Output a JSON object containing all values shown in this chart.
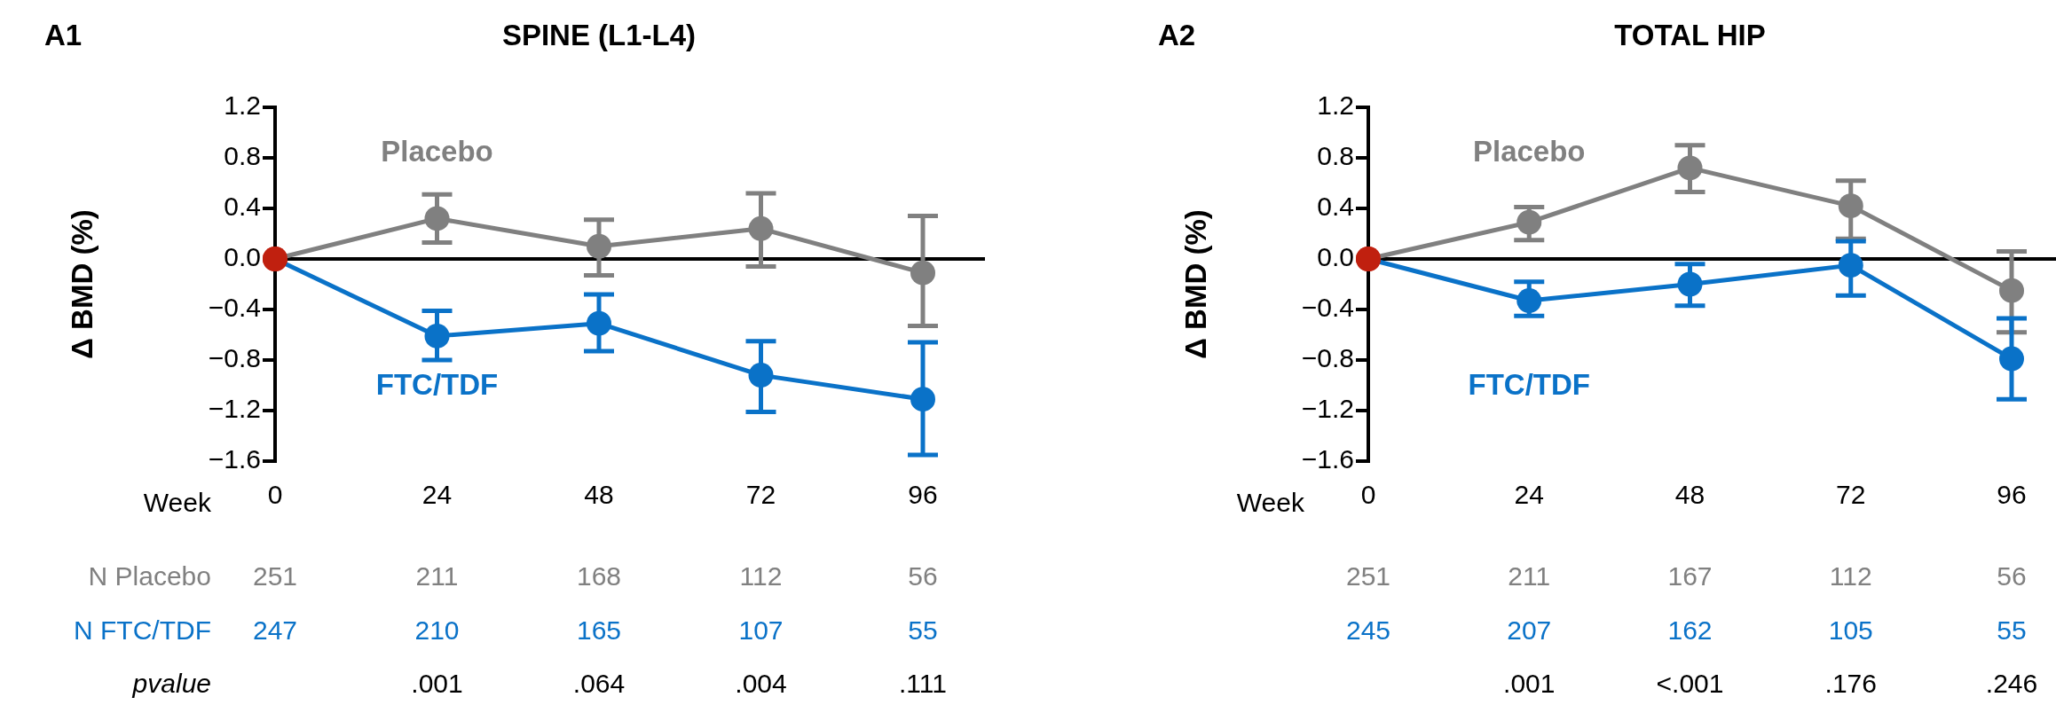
{
  "chart_data": [
    {
      "type": "line",
      "subtitle": "A1",
      "title": "SPINE (L1-L4)",
      "xlabel": "Week",
      "ylabel": "Δ BMD (%)",
      "categories": [
        "0",
        "24",
        "48",
        "72",
        "96"
      ],
      "series": [
        {
          "name": "Placebo",
          "color": "#808080",
          "colors": [
            "#c0200f",
            "#808080",
            "#808080",
            "#808080",
            "#808080"
          ],
          "values": [
            0,
            0.32,
            0.1,
            0.24,
            -0.11
          ],
          "errors": [
            null,
            [
              0.13,
              0.51
            ],
            [
              -0.13,
              0.31
            ],
            [
              -0.06,
              0.52
            ],
            [
              -0.53,
              0.34
            ]
          ]
        },
        {
          "name": "FTC/TDF",
          "color": "#0a72c8",
          "colors": [
            "#c0200f",
            "#0a72c8",
            "#0a72c8",
            "#0a72c8",
            "#0a72c8"
          ],
          "values": [
            0,
            -0.61,
            -0.51,
            -0.92,
            -1.11
          ],
          "errors": [
            null,
            [
              -0.8,
              -0.41
            ],
            [
              -0.73,
              -0.28
            ],
            [
              -1.21,
              -0.65
            ],
            [
              -1.55,
              -0.66
            ]
          ]
        }
      ],
      "ylim": [
        -1.6,
        1.2
      ],
      "yticks": [
        1.2,
        0.8,
        0.4,
        {
          "value": 0,
          "label": "0.0"
        },
        {
          "value": -0.4,
          "label": "−0.4"
        },
        {
          "value": -0.8,
          "label": "−0.8"
        },
        {
          "value": -1.2,
          "label": "−1.2"
        },
        {
          "value": -1.6,
          "label": "−1.6"
        }
      ],
      "ref_lines": [
        {
          "axis": "y",
          "value": 0,
          "color": "#000000"
        }
      ],
      "marker": "circle",
      "legend": false,
      "grid": false,
      "annotations": [
        "N Placebo",
        "251",
        "211",
        "168",
        "112",
        "56",
        "N FTC/TDF",
        "247",
        "210",
        "165",
        "107",
        "55",
        "pvalue",
        ".001",
        ".064",
        ".004",
        ".111"
      ]
    },
    {
      "type": "line",
      "subtitle": "A2",
      "title": "TOTAL HIP",
      "xlabel": "Week",
      "ylabel": "Δ BMD (%)",
      "categories": [
        "0",
        "24",
        "48",
        "72",
        "96"
      ],
      "series": [
        {
          "name": "Placebo",
          "color": "#808080",
          "colors": [
            "#c0200f",
            "#808080",
            "#808080",
            "#808080",
            "#808080"
          ],
          "values": [
            0,
            0.29,
            0.72,
            0.42,
            -0.25
          ],
          "errors": [
            null,
            [
              0.15,
              0.41
            ],
            [
              0.53,
              0.9
            ],
            [
              0.16,
              0.62
            ],
            [
              -0.58,
              0.06
            ]
          ]
        },
        {
          "name": "FTC/TDF",
          "color": "#0a72c8",
          "colors": [
            "#c0200f",
            "#0a72c8",
            "#0a72c8",
            "#0a72c8",
            "#0a72c8"
          ],
          "values": [
            0,
            -0.33,
            -0.2,
            -0.05,
            -0.79
          ],
          "errors": [
            null,
            [
              -0.45,
              -0.18
            ],
            [
              -0.37,
              -0.04
            ],
            [
              -0.29,
              0.14
            ],
            [
              -1.11,
              -0.47
            ]
          ]
        }
      ],
      "ylim": [
        -1.6,
        1.2
      ],
      "yticks": [
        1.2,
        0.8,
        0.4,
        {
          "value": 0,
          "label": "0.0"
        },
        {
          "value": -0.4,
          "label": "−0.4"
        },
        {
          "value": -0.8,
          "label": "−0.8"
        },
        {
          "value": -1.2,
          "label": "−1.2"
        },
        {
          "value": -1.6,
          "label": "−1.6"
        }
      ],
      "ref_lines": [
        {
          "axis": "y",
          "value": 0,
          "color": "#000000"
        }
      ],
      "marker": "circle",
      "legend": false,
      "grid": false,
      "annotations": [
        "251",
        "211",
        "167",
        "112",
        "56",
        "245",
        "207",
        "162",
        "105",
        "55",
        ".001",
        "<.001",
        ".176",
        ".246"
      ]
    }
  ]
}
